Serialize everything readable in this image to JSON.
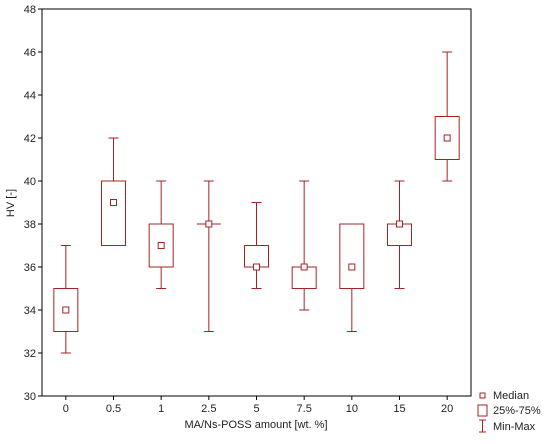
{
  "chart_data": {
    "type": "boxplot",
    "xlabel": "MA/Ns-POSS amount [wt. %]",
    "ylabel": "HV [-]",
    "ylim": [
      30,
      48
    ],
    "y_ticks": [
      30,
      32,
      34,
      36,
      38,
      40,
      42,
      44,
      46,
      48
    ],
    "categories": [
      "0",
      "0.5",
      "1",
      "2.5",
      "5",
      "7.5",
      "10",
      "15",
      "20"
    ],
    "series": [
      {
        "min": 32,
        "q1": 33,
        "median": 34,
        "q3": 35,
        "max": 37
      },
      {
        "min": 37,
        "q1": 37,
        "median": 39,
        "q3": 40,
        "max": 42
      },
      {
        "min": 35,
        "q1": 36,
        "median": 37,
        "q3": 38,
        "max": 40
      },
      {
        "min": 33,
        "q1": 38,
        "median": 38,
        "q3": 38,
        "max": 40
      },
      {
        "min": 35,
        "q1": 36,
        "median": 36,
        "q3": 37,
        "max": 39
      },
      {
        "min": 34,
        "q1": 35,
        "median": 36,
        "q3": 36,
        "max": 40
      },
      {
        "min": 33,
        "q1": 35,
        "median": 36,
        "q3": 38,
        "max": 38
      },
      {
        "min": 35,
        "q1": 37,
        "median": 38,
        "q3": 38,
        "max": 40
      },
      {
        "min": 40,
        "q1": 41,
        "median": 42,
        "q3": 43,
        "max": 46
      }
    ],
    "legend": {
      "placement": "bottom-right",
      "entries": [
        "Median",
        "25%-75%",
        "Min-Max"
      ]
    },
    "grid": false,
    "color": "#a32323"
  }
}
